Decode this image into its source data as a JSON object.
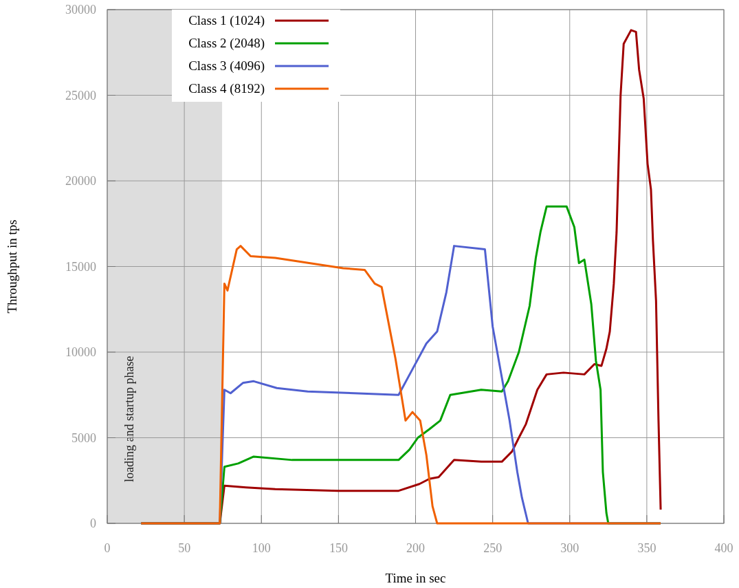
{
  "chart_data": {
    "type": "line",
    "xlabel": "Time in sec",
    "ylabel": "Throughput in tps",
    "xlim": [
      0,
      400
    ],
    "ylim": [
      0,
      30000
    ],
    "xticks": [
      0,
      50,
      100,
      150,
      200,
      250,
      300,
      350,
      400
    ],
    "yticks": [
      0,
      5000,
      10000,
      15000,
      20000,
      25000,
      30000
    ],
    "grid": true,
    "legend": "top left",
    "line_style": "solid",
    "marker": "none",
    "bands": [
      {
        "axis": "x",
        "from": 0,
        "to": 74.5,
        "label": "loading and startup phase",
        "color": "#dddddd"
      }
    ],
    "series": [
      {
        "name": "Class 1 (1024)",
        "color": "#a00000",
        "x": [
          22,
          73,
          76,
          90,
          109,
          150,
          189,
          202.5,
          209,
          215,
          218,
          225,
          242.6,
          256,
          262.6,
          267,
          271.6,
          279,
          285,
          296,
          309.5,
          316,
          320.6,
          323.8,
          326,
          328.6,
          330.4,
          333,
          335,
          339.8,
          343,
          345,
          348,
          350.5,
          352.7,
          354,
          356,
          357.6,
          359
        ],
        "values": [
          0,
          0,
          2200,
          2100,
          2000,
          1900,
          1900,
          2300,
          2600,
          2700,
          3000,
          3700,
          3600,
          3600,
          4200,
          5000,
          5800,
          7800,
          8700,
          8800,
          8700,
          9300,
          9200,
          10200,
          11200,
          14000,
          17000,
          25000,
          28000,
          28800,
          28700,
          26500,
          24800,
          21000,
          19500,
          16500,
          13000,
          6000,
          800
        ]
      },
      {
        "name": "Class 2 (2048)",
        "color": "#00a000",
        "x": [
          22,
          73,
          76,
          85,
          95,
          120,
          150,
          189,
          196,
          201.5,
          209,
          216,
          222.5,
          242.6,
          256,
          260,
          267,
          274,
          278,
          281,
          285,
          298,
          303,
          306,
          309.5,
          314,
          317,
          320,
          321.5,
          323.8,
          325,
          359
        ],
        "values": [
          0,
          0,
          3300,
          3500,
          3900,
          3700,
          3700,
          3700,
          4300,
          5000,
          5500,
          6000,
          7500,
          7800,
          7700,
          8300,
          10000,
          12700,
          15500,
          17000,
          18500,
          18500,
          17300,
          15200,
          15400,
          12800,
          9500,
          7800,
          3000,
          600,
          0,
          0
        ]
      },
      {
        "name": "Class 3 (4096)",
        "color": "#5060d0",
        "x": [
          22,
          73,
          76,
          80,
          88,
          95,
          110,
          130,
          160,
          189,
          198,
          207,
          214,
          220,
          225,
          245,
          248,
          250,
          252,
          256,
          261,
          266,
          269,
          273,
          359
        ],
        "values": [
          0,
          0,
          7800,
          7600,
          8200,
          8300,
          7900,
          7700,
          7600,
          7500,
          9000,
          10500,
          11200,
          13500,
          16200,
          16000,
          13300,
          11500,
          10500,
          8500,
          6000,
          3000,
          1500,
          0,
          0
        ]
      },
      {
        "name": "Class 4 (8192)",
        "color": "#f06000",
        "x": [
          22,
          73,
          76,
          78,
          84,
          86.5,
          93,
          109,
          131,
          153,
          167,
          173.5,
          178,
          184,
          187,
          193.5,
          198,
          203,
          207,
          211,
          214,
          359
        ],
        "values": [
          0,
          0,
          14000,
          13600,
          16000,
          16200,
          15600,
          15500,
          15200,
          14900,
          14800,
          14000,
          13800,
          11000,
          9600,
          6000,
          6500,
          6000,
          4000,
          1000,
          0,
          0
        ]
      }
    ]
  }
}
